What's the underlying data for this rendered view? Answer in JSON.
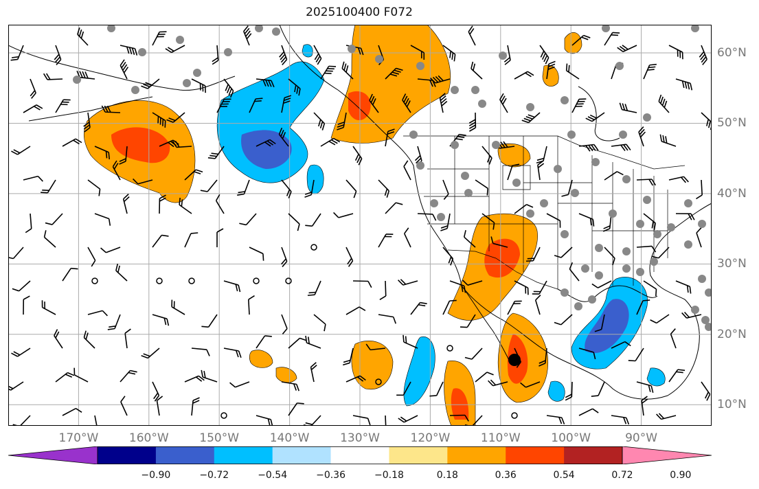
{
  "title": "2025100400 F072",
  "map": {
    "lon_range": [
      -180,
      -80
    ],
    "lat_range": [
      7,
      64
    ],
    "lat_labels": [
      {
        "value": 60,
        "label": "60°N"
      },
      {
        "value": 50,
        "label": "50°N"
      },
      {
        "value": 40,
        "label": "40°N"
      },
      {
        "value": 30,
        "label": "30°N"
      },
      {
        "value": 20,
        "label": "20°N"
      },
      {
        "value": 10,
        "label": "10°N"
      }
    ],
    "lon_labels": [
      {
        "value": -170,
        "label": "170°W"
      },
      {
        "value": -160,
        "label": "160°W"
      },
      {
        "value": -150,
        "label": "150°W"
      },
      {
        "value": -140,
        "label": "140°W"
      },
      {
        "value": -130,
        "label": "130°W"
      },
      {
        "value": -120,
        "label": "120°W"
      },
      {
        "value": -110,
        "label": "110°W"
      },
      {
        "value": -100,
        "label": "100°W"
      },
      {
        "value": -90,
        "label": "90°W"
      }
    ],
    "grid": true,
    "features": [
      "coastlines",
      "country-borders",
      "state-borders",
      "wind-barbs",
      "station-dots"
    ]
  },
  "colorbar": {
    "extend": "both",
    "ticks": [
      "−0.90",
      "−0.72",
      "−0.54",
      "−0.36",
      "−0.18",
      "0.18",
      "0.36",
      "0.54",
      "0.72",
      "0.90"
    ],
    "colors": [
      "#9932cc",
      "#00008b",
      "#3a5fcd",
      "#00bfff",
      "#b0e2ff",
      "#ffffff",
      "#fde68a",
      "#ffa500",
      "#ff4500",
      "#b22222",
      "#ff87b0"
    ]
  },
  "colors": {
    "orange": "#ffa500",
    "red": "#ff4500",
    "light_blue": "#00bfff",
    "blue": "#3a5fcd",
    "pale_blue": "#b0e2ff",
    "yellow": "#fde68a",
    "station_dot": "#888888"
  }
}
